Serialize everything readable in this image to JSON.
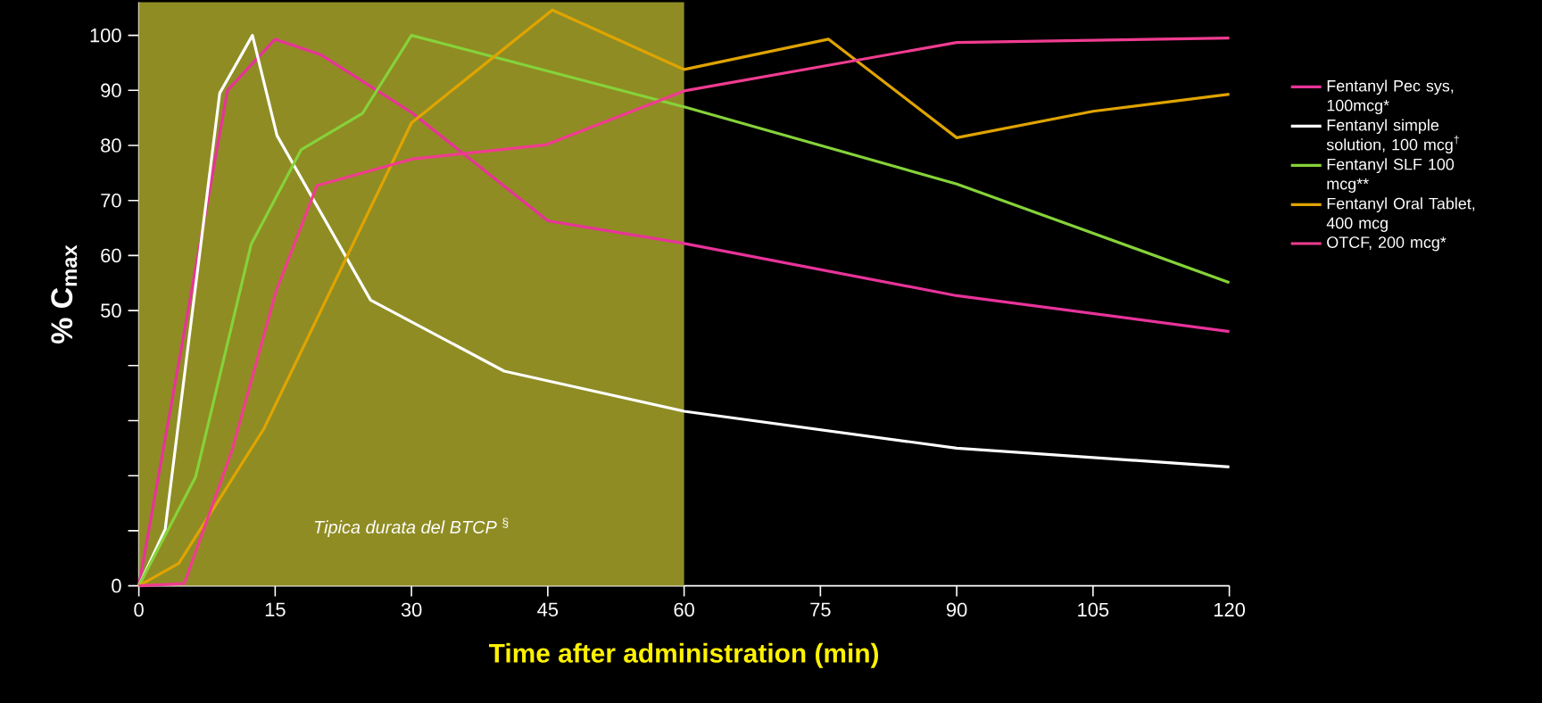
{
  "chart_data": {
    "type": "line",
    "xlabel": "Time after administration (min)",
    "ylabel": "% C$_{max}$",
    "series": [
      {
        "name": "Fentanyl Pec sys, 100mcg*",
        "color": "#e8339a",
        "x": [
          0,
          9.75,
          15,
          20,
          30,
          45,
          60,
          90,
          120
        ],
        "values": [
          0,
          90,
          99.3,
          96.5,
          86,
          66.3,
          62.2,
          52.7,
          46.2
        ]
      },
      {
        "name": "Fentanyl simple solution, 100 mcg$^{†}$",
        "color": "#ffffff",
        "x": [
          0,
          2.9,
          8.9,
          12.5,
          15.2,
          25.5,
          40.2,
          60,
          90,
          120
        ],
        "values": [
          0,
          10.3,
          89.5,
          100,
          81.8,
          51.9,
          39,
          31.7,
          25,
          21.6
        ]
      },
      {
        "name": "Fentanyl SLF      100 mcg**",
        "color": "#86d23a",
        "x": [
          0,
          6.25,
          12.35,
          17.85,
          24.6,
          30,
          60,
          90,
          120
        ],
        "values": [
          0,
          19.8,
          62,
          79.2,
          85.8,
          100,
          87,
          73,
          55.1
        ]
      },
      {
        "name": "Fentanyl Oral Tablet, 400 mcg",
        "color": "#e0a400",
        "x": [
          0,
          4.4,
          13.75,
          30,
          45.5,
          60,
          75.9,
          90,
          105,
          120
        ],
        "values": [
          0,
          4.1,
          28.5,
          84.1,
          104.6,
          93.8,
          99.3,
          81.4,
          86.2,
          89.3
        ]
      },
      {
        "name": "OTCF, 200 mcg*",
        "color": "#f03c90",
        "x": [
          0,
          5,
          10.25,
          15.1,
          19.6,
          30,
          44.75,
          60,
          90,
          120
        ],
        "values": [
          0,
          0.4,
          24.6,
          53.5,
          72.7,
          77.5,
          80.1,
          89.9,
          98.7,
          99.5
        ]
      }
    ],
    "xlim": [
      0,
      120
    ],
    "ylim": [
      0,
      106
    ],
    "xticks": [
      0,
      15,
      30,
      45,
      60,
      75,
      90,
      105,
      120
    ],
    "yticks": [
      0,
      {
        "value": 10,
        "label": null
      },
      {
        "value": 20,
        "label": null
      },
      {
        "value": 30,
        "label": null
      },
      {
        "value": 40,
        "label": null
      },
      50,
      60,
      70,
      80,
      90,
      100
    ],
    "bands": [
      {
        "axis": "x",
        "from": 0,
        "to": 60,
        "label": "*Tipica durata del  BTCP* $^{§}$",
        "color": "#8f8c24"
      }
    ],
    "legend": "right",
    "marker": "none",
    "line_style": "solid"
  }
}
